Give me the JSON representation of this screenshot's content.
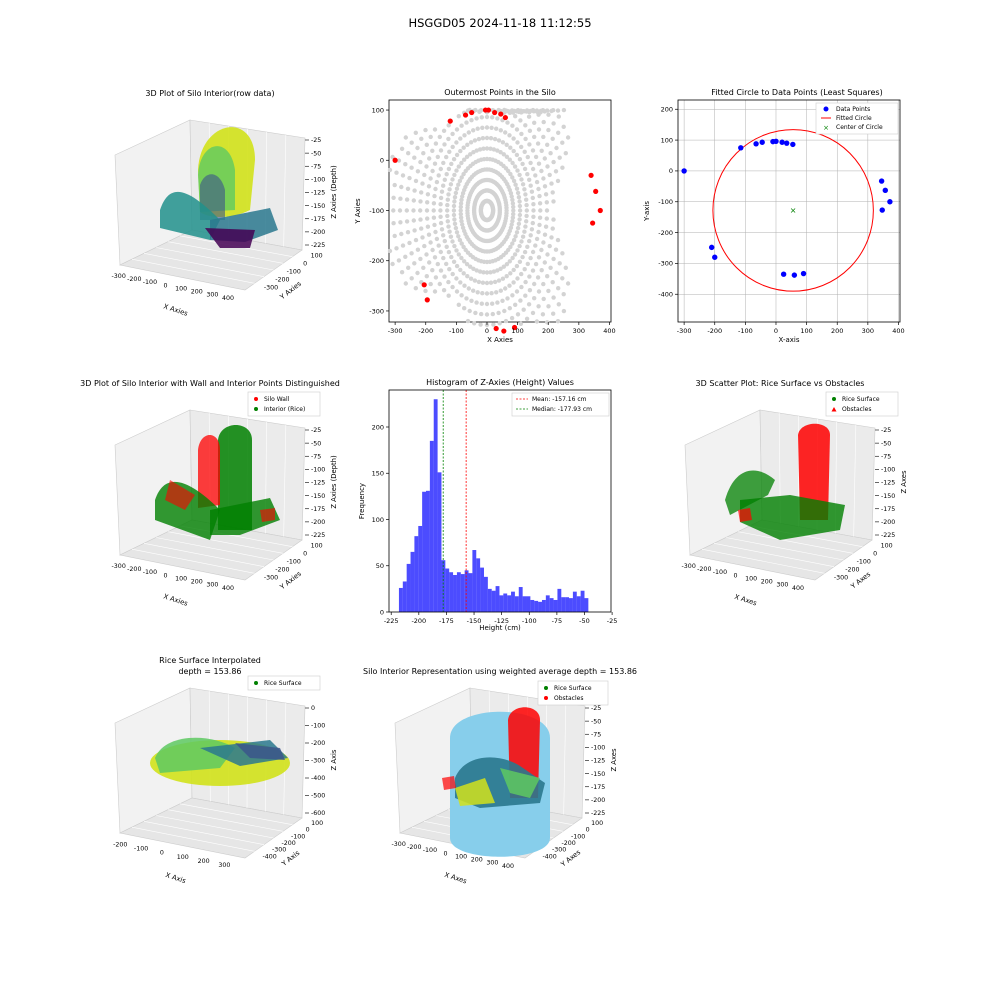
{
  "suptitle": "HSGGD05 2024-11-18 11:12:55",
  "colors": {
    "wall": "#ff0000",
    "rice": "#008000",
    "hist": "#0000ff",
    "grey": "#d3d3d3",
    "mean": "#ff0000",
    "median": "#008000",
    "cyl": "#87ceeb"
  },
  "panels": {
    "p1": {
      "title": "3D Plot of Silo Interior(row data)",
      "xlabel": "X Axies",
      "ylabel": "Y Axies",
      "zlabel": "Z Axies (Depth)",
      "xticks": [
        "-300",
        "-200",
        "-100",
        "0",
        "100",
        "200",
        "300",
        "400"
      ],
      "yticks": [
        "100",
        "0",
        "-100",
        "-200",
        "-300"
      ],
      "zticks": [
        "-25",
        "-50",
        "-75",
        "-100",
        "-125",
        "-150",
        "-175",
        "-200",
        "-225"
      ]
    },
    "p4": {
      "title": "3D Plot of Silo Interior with Wall and Interior Points Distinguished",
      "xlabel": "X Axies",
      "ylabel": "Y Axies",
      "zlabel": "Z Axies (Depth)",
      "xticks": [
        "-300",
        "-200",
        "-100",
        "0",
        "100",
        "200",
        "300",
        "400"
      ],
      "yticks": [
        "100",
        "0",
        "-100",
        "-200",
        "-300"
      ],
      "zticks": [
        "-25",
        "-50",
        "-75",
        "-100",
        "-125",
        "-150",
        "-175",
        "-200",
        "-225"
      ],
      "legend": [
        "Silo Wall",
        "Interior (Rice)"
      ]
    },
    "p6": {
      "title": "3D Scatter Plot: Rice Surface vs Obstacles",
      "xlabel": "X Axes",
      "ylabel": "Y Axes",
      "zlabel": "Z Axes",
      "xticks": [
        "-300",
        "-200",
        "-100",
        "0",
        "100",
        "200",
        "300",
        "400"
      ],
      "yticks": [
        "100",
        "0",
        "-100",
        "-200",
        "-300"
      ],
      "zticks": [
        "-25",
        "-50",
        "-75",
        "-100",
        "-125",
        "-150",
        "-175",
        "-200",
        "-225"
      ],
      "legend": [
        "Rice Surface",
        "Obstacles"
      ]
    },
    "p7": {
      "title_line1": "Rice Surface Interpolated",
      "title_line2": "depth = 153.86",
      "xlabel": "X Axis",
      "ylabel": "Y Axis",
      "zlabel": "Z Axis",
      "xticks": [
        "-200",
        "-100",
        "0",
        "100",
        "200",
        "300"
      ],
      "yticks": [
        "100",
        "0",
        "-100",
        "-200",
        "-300",
        "-400"
      ],
      "zticks": [
        "0",
        "-100",
        "-200",
        "-300",
        "-400",
        "-500",
        "-600"
      ],
      "legend": [
        "Rice Surface"
      ]
    },
    "p8": {
      "title": "Silo Interior Representation using weighted average depth = 153.86",
      "xlabel": "X Axes",
      "ylabel": "Y Axes",
      "zlabel": "Z Axes",
      "xticks": [
        "-300",
        "-200",
        "-100",
        "0",
        "100",
        "200",
        "300",
        "400"
      ],
      "yticks": [
        "100",
        "0",
        "-100",
        "-200",
        "-300",
        "-400"
      ],
      "zticks": [
        "-25",
        "-50",
        "-75",
        "-100",
        "-125",
        "-150",
        "-175",
        "-200",
        "-225"
      ],
      "legend": [
        "Rice Surface",
        "Obstacles"
      ]
    }
  },
  "chart_data": [
    {
      "id": "outermost",
      "type": "scatter",
      "title": "Outermost Points in the Silo",
      "xlabel": "X Axies",
      "ylabel": "Y Axies",
      "xlim": [
        -320,
        405
      ],
      "ylim": [
        -322,
        120
      ],
      "xticks": [
        -300,
        -200,
        -100,
        0,
        100,
        200,
        300,
        400
      ],
      "yticks": [
        -300,
        -200,
        -100,
        0,
        100
      ],
      "outer_points": [
        [
          -300,
          0
        ],
        [
          -120,
          78
        ],
        [
          -70,
          90
        ],
        [
          -50,
          95
        ],
        [
          -5,
          100
        ],
        [
          5,
          100
        ],
        [
          25,
          95
        ],
        [
          45,
          92
        ],
        [
          60,
          85
        ],
        [
          340,
          -30
        ],
        [
          355,
          -62
        ],
        [
          370,
          -100
        ],
        [
          345,
          -125
        ],
        [
          -205,
          -248
        ],
        [
          -195,
          -278
        ],
        [
          30,
          -335
        ],
        [
          55,
          -340
        ],
        [
          90,
          -333
        ]
      ]
    },
    {
      "id": "fitted",
      "type": "scatter",
      "title": "Fitted Circle to Data Points (Least Squares)",
      "xlabel": "X-axis",
      "ylabel": "Y-axis",
      "xlim": [
        -320,
        405
      ],
      "ylim": [
        -490,
        230
      ],
      "xticks": [
        -300,
        -200,
        -100,
        0,
        100,
        200,
        300,
        400
      ],
      "yticks": [
        -400,
        -300,
        -200,
        -100,
        0,
        100,
        200
      ],
      "legend": [
        "Data Points",
        "Fitted Circle",
        "Center of Circle"
      ],
      "points": [
        [
          -300,
          0
        ],
        [
          -115,
          75
        ],
        [
          -65,
          88
        ],
        [
          -45,
          93
        ],
        [
          -10,
          95
        ],
        [
          0,
          96
        ],
        [
          20,
          93
        ],
        [
          35,
          90
        ],
        [
          55,
          86
        ],
        [
          345,
          -33
        ],
        [
          357,
          -63
        ],
        [
          372,
          -100
        ],
        [
          347,
          -127
        ],
        [
          -210,
          -248
        ],
        [
          -200,
          -280
        ],
        [
          25,
          -335
        ],
        [
          60,
          -338
        ],
        [
          90,
          -333
        ]
      ],
      "circle": {
        "center": [
          56,
          -128
        ],
        "radius": 262
      }
    },
    {
      "id": "histogram",
      "type": "bar",
      "title": "Histogram of Z-Axies (Height) Values",
      "xlabel": "Height (cm)",
      "ylabel": "Frequency",
      "xlim": [
        -227,
        -26
      ],
      "ylim": [
        0,
        240
      ],
      "xticks": [
        -225,
        -200,
        -175,
        -150,
        -125,
        -100,
        -75,
        -50,
        -25
      ],
      "yticks": [
        0,
        50,
        100,
        150,
        200
      ],
      "bin_start": -218,
      "bin_width": 3.5,
      "values": [
        26,
        33,
        52,
        65,
        82,
        93,
        130,
        131,
        185,
        230,
        151,
        56,
        47,
        43,
        40,
        43,
        41,
        45,
        42,
        67,
        58,
        48,
        38,
        25,
        23,
        28,
        18,
        20,
        18,
        22,
        17,
        27,
        17,
        17,
        13,
        12,
        11,
        13,
        18,
        15,
        13,
        25,
        16,
        16,
        15,
        22,
        17,
        23,
        15
      ],
      "mean": -157.16,
      "median": -177.93,
      "legend": [
        "Mean: -157.16 cm",
        "Median: -177.93 cm"
      ]
    }
  ]
}
